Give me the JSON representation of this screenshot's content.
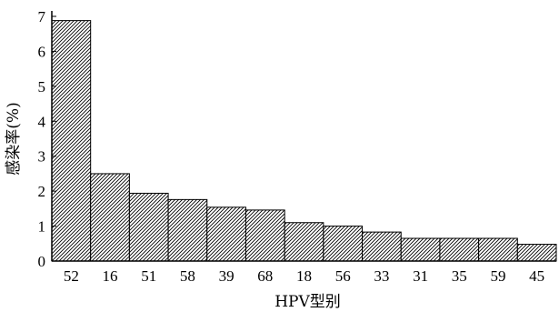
{
  "chart_data": {
    "type": "bar",
    "xlabel": "HPV型别",
    "ylabel": "感染率(%)",
    "ylim": [
      0,
      7
    ],
    "yticks": [
      0,
      1,
      2,
      3,
      4,
      5,
      6,
      7
    ],
    "categories": [
      "52",
      "16",
      "51",
      "58",
      "39",
      "68",
      "18",
      "56",
      "33",
      "31",
      "35",
      "59",
      "45"
    ],
    "values": [
      6.88,
      2.5,
      1.94,
      1.76,
      1.54,
      1.46,
      1.1,
      1.0,
      0.83,
      0.65,
      0.65,
      0.65,
      0.48
    ],
    "grid": false,
    "bar_fill": "diagonal-hatch"
  }
}
